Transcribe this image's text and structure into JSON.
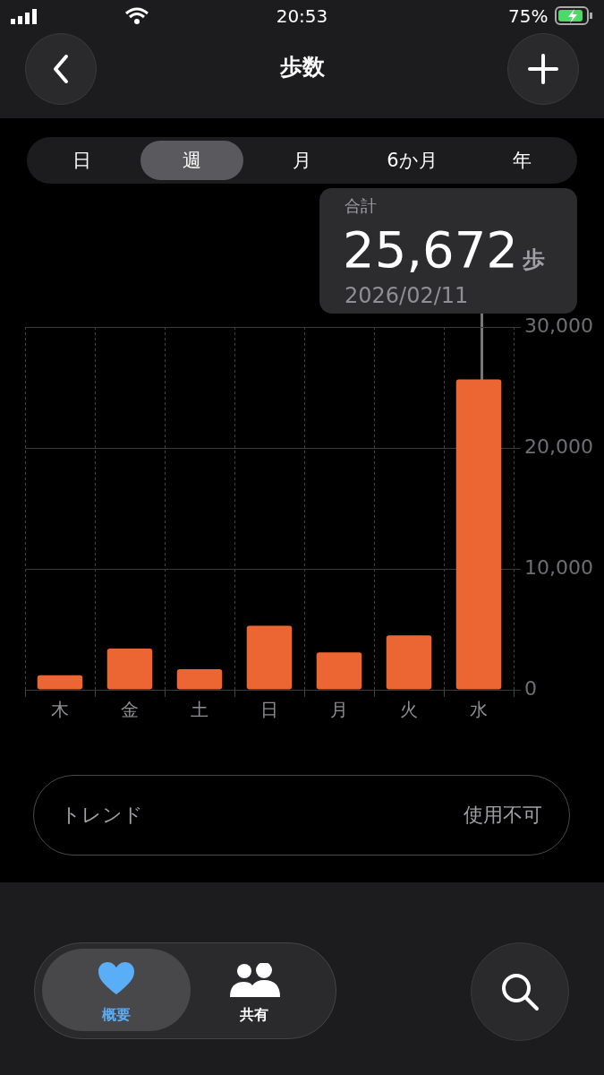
{
  "chart_data": {
    "type": "bar",
    "title": "歩数",
    "categories": [
      "木",
      "金",
      "土",
      "日",
      "月",
      "火",
      "水"
    ],
    "values": [
      1200,
      3400,
      1700,
      5300,
      3100,
      4500,
      25672
    ],
    "color": "#ec6633",
    "value_labels": [
      null,
      null,
      null,
      null,
      null,
      null,
      "25,672"
    ],
    "ylim": [
      0,
      30000
    ],
    "yticks": [
      0,
      {
        "value": 10000,
        "label": "10,000"
      },
      {
        "value": 20000,
        "label": "20,000"
      },
      {
        "value": 30000,
        "label": "30,000"
      }
    ],
    "grid": true,
    "legend": false,
    "annotations": [
      "20:53",
      "75%",
      "日",
      "週",
      "月",
      "6か月",
      "年",
      "合計",
      "歩",
      "2026/02/11",
      "トレンド",
      "使用不可",
      "概要",
      "共有"
    ]
  }
}
